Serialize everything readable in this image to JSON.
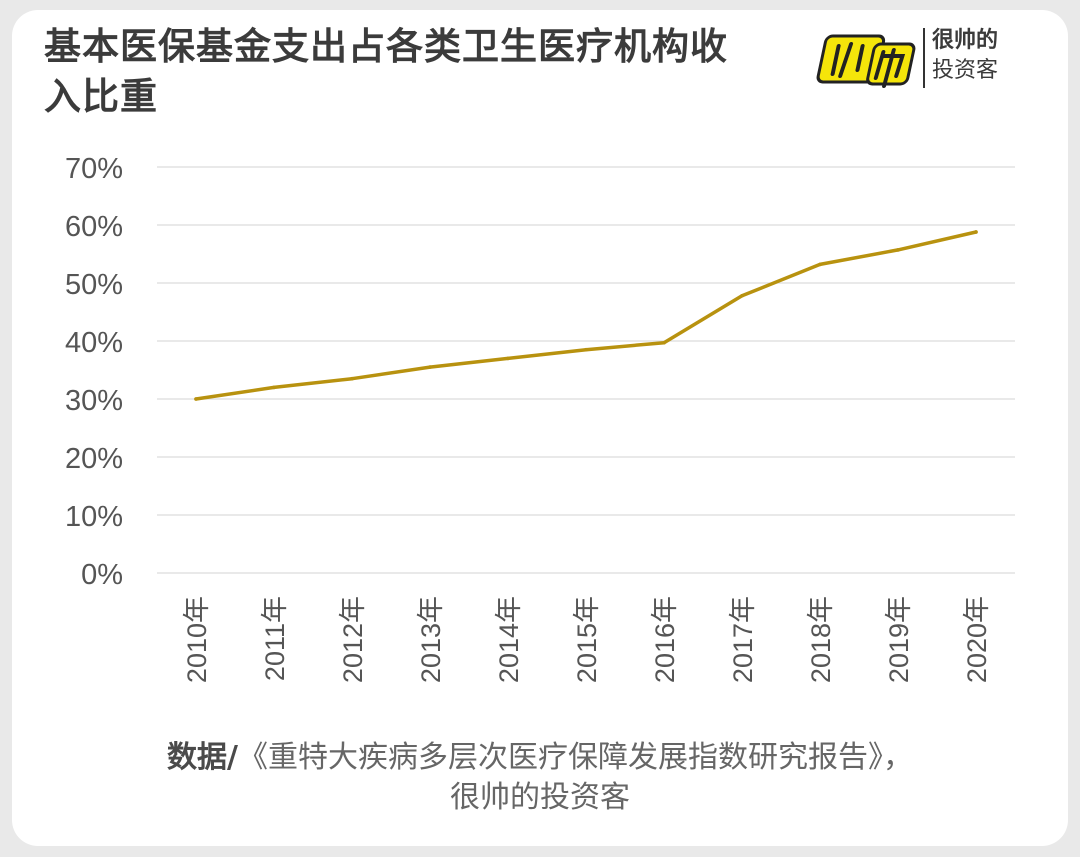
{
  "title": "基本医保基金支出占各类卫生医疗机构收入比重",
  "logo": {
    "mark": "帅",
    "line1": "很帅的",
    "line2": "投资客"
  },
  "source": {
    "label": "数据/",
    "text_line1": "《重特大疾病多层次医疗保障发展指数研究报告》，",
    "text_line2": "很帅的投资客"
  },
  "colors": {
    "line": "#b8920f",
    "grid": "#dcdcdc",
    "axis_text": "#555555",
    "logo_yellow": "#f5e50a"
  },
  "chart_data": {
    "type": "line",
    "title": "基本医保基金支出占各类卫生医疗机构收入比重",
    "categories": [
      "2010年",
      "2011年",
      "2012年",
      "2013年",
      "2014年",
      "2015年",
      "2016年",
      "2017年",
      "2018年",
      "2019年",
      "2020年"
    ],
    "values": [
      30,
      32,
      33.5,
      35.5,
      37,
      38.5,
      39.7,
      47.8,
      53.2,
      55.7,
      58.8
    ],
    "y_ticks": [
      "0%",
      "10%",
      "20%",
      "30%",
      "40%",
      "50%",
      "60%",
      "70%"
    ],
    "ylim": [
      0,
      70
    ],
    "xlabel": "",
    "ylabel": "",
    "grid": true
  }
}
